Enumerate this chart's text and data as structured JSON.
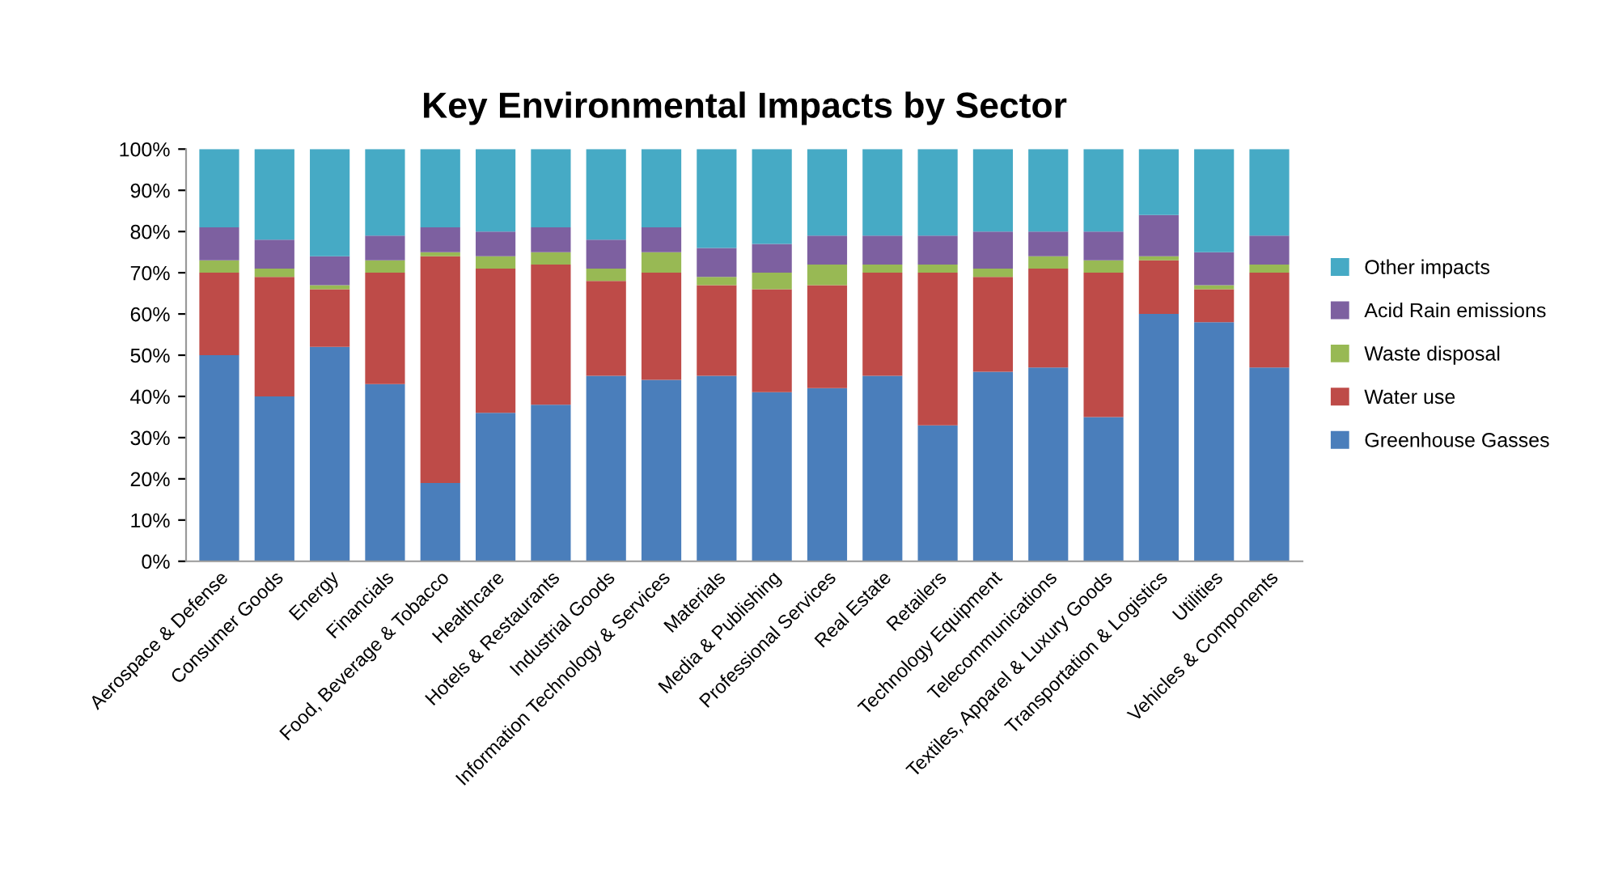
{
  "chart_data": {
    "type": "bar",
    "title": "Key Environmental Impacts by Sector",
    "stacked": true,
    "categories": [
      "Aerospace & Defense",
      "Consumer Goods",
      "Energy",
      "Financials",
      "Food, Beverage & Tobacco",
      "Healthcare",
      "Hotels & Restaurants",
      "Industrial Goods",
      "Information Technology & Services",
      "Materials",
      "Media & Publishing",
      "Professional Services",
      "Real Estate",
      "Retailers",
      "Technology Equipment",
      "Telecommunications",
      "Textiles, Apparel & Luxury Goods",
      "Transportation & Logistics",
      "Utilities",
      "Vehicles & Components"
    ],
    "series": [
      {
        "name": "Greenhouse Gasses",
        "color": "#4a7ebb",
        "values": [
          50,
          40,
          52,
          43,
          19,
          36,
          38,
          45,
          44,
          45,
          41,
          42,
          45,
          33,
          46,
          47,
          35,
          60,
          58,
          47
        ]
      },
      {
        "name": "Water use",
        "color": "#be4b48",
        "values": [
          20,
          29,
          14,
          27,
          55,
          35,
          34,
          23,
          26,
          22,
          25,
          25,
          25,
          37,
          23,
          24,
          35,
          13,
          8,
          23
        ]
      },
      {
        "name": "Waste disposal",
        "color": "#98b954",
        "values": [
          3,
          2,
          1,
          3,
          1,
          3,
          3,
          3,
          5,
          2,
          4,
          5,
          2,
          2,
          2,
          3,
          3,
          1,
          1,
          2
        ]
      },
      {
        "name": "Acid Rain emissions",
        "color": "#7d60a0",
        "values": [
          8,
          7,
          7,
          6,
          6,
          6,
          6,
          7,
          6,
          7,
          7,
          7,
          7,
          7,
          9,
          6,
          7,
          10,
          8,
          7
        ]
      },
      {
        "name": "Other impacts",
        "color": "#46aac5",
        "values": [
          19,
          22,
          26,
          21,
          19,
          20,
          19,
          22,
          19,
          24,
          23,
          21,
          21,
          21,
          20,
          20,
          20,
          16,
          25,
          21
        ]
      }
    ],
    "ylim": [
      0,
      100
    ],
    "yticks": [
      {
        "value": 0,
        "label": "0%"
      },
      {
        "value": 10,
        "label": "10%"
      },
      {
        "value": 20,
        "label": "20%"
      },
      {
        "value": 30,
        "label": "30%"
      },
      {
        "value": 40,
        "label": "40%"
      },
      {
        "value": 50,
        "label": "50%"
      },
      {
        "value": 60,
        "label": "60%"
      },
      {
        "value": 70,
        "label": "70%"
      },
      {
        "value": 80,
        "label": "80%"
      },
      {
        "value": 90,
        "label": "90%"
      },
      {
        "value": 100,
        "label": "100%"
      }
    ],
    "grid": false,
    "legend": "right"
  }
}
